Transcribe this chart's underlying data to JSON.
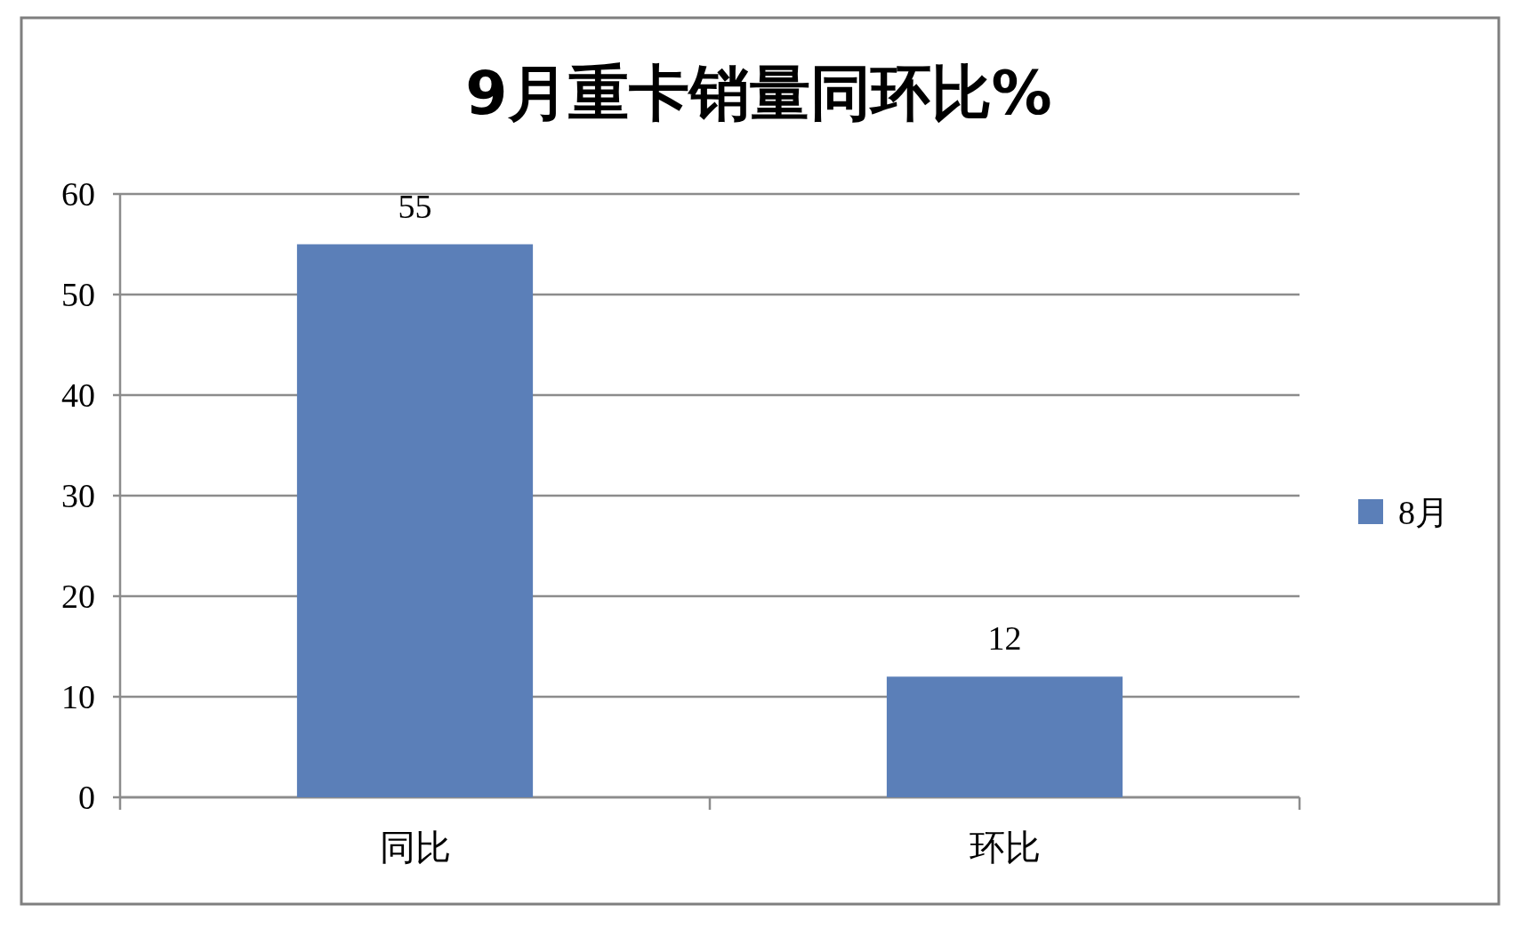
{
  "chart_data": {
    "type": "bar",
    "title": "9月重卡销量同环比%",
    "categories": [
      "同比",
      "环比"
    ],
    "series": [
      {
        "name": "8月",
        "color": "#5b7fb8",
        "values": [
          55,
          12
        ]
      }
    ],
    "ylim": [
      0,
      60
    ],
    "yticks": [
      0,
      10,
      20,
      30,
      40,
      50,
      60
    ],
    "grid": "y",
    "legend": "right",
    "data_labels": true
  }
}
